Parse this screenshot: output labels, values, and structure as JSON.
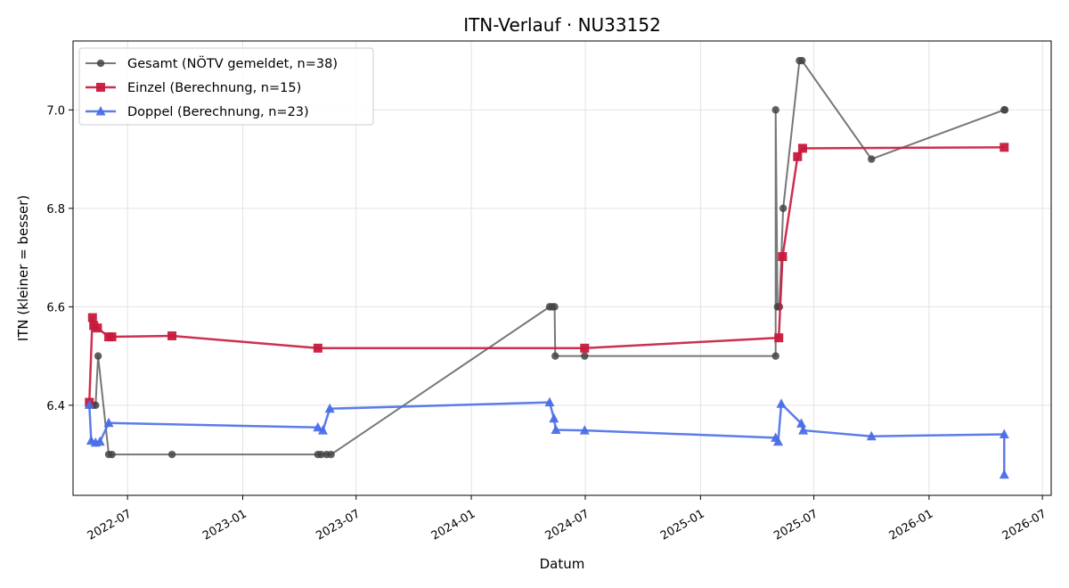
{
  "chart_data": {
    "type": "line",
    "title": "ITN-Verlauf · NU33152",
    "xlabel": "Datum",
    "ylabel": "ITN  (kleiner = besser)",
    "x_type": "date",
    "xlim": [
      "2022-04-05",
      "2026-07-15"
    ],
    "ylim": [
      6.217,
      7.14
    ],
    "xticks": [
      "2022-07",
      "2023-01",
      "2023-07",
      "2024-01",
      "2024-07",
      "2025-01",
      "2025-07",
      "2026-01",
      "2026-07"
    ],
    "yticks": [
      6.4,
      6.6,
      6.8,
      7.0
    ],
    "ytick_labels": [
      "6.4",
      "6.6",
      "6.8",
      "7.0"
    ],
    "grid": true,
    "legend_position": "top-left",
    "series": [
      {
        "name": "Gesamt (NÖTV gemeldet, n=38)",
        "color": "#555555",
        "marker": "circle",
        "points": [
          [
            "2022-05-01",
            6.4
          ],
          [
            "2022-05-07",
            6.4
          ],
          [
            "2022-05-11",
            6.4
          ],
          [
            "2022-05-15",
            6.5
          ],
          [
            "2022-06-01",
            6.3
          ],
          [
            "2022-06-06",
            6.3
          ],
          [
            "2022-09-10",
            6.3
          ],
          [
            "2023-05-01",
            6.3
          ],
          [
            "2023-05-06",
            6.3
          ],
          [
            "2023-05-15",
            6.3
          ],
          [
            "2023-05-22",
            6.3
          ],
          [
            "2024-05-05",
            6.6
          ],
          [
            "2024-05-09",
            6.6
          ],
          [
            "2024-05-13",
            6.6
          ],
          [
            "2024-05-14",
            6.5
          ],
          [
            "2024-06-30",
            6.5
          ],
          [
            "2025-05-01",
            6.5
          ],
          [
            "2025-05-01",
            7.0
          ],
          [
            "2025-05-04",
            6.6
          ],
          [
            "2025-05-07",
            6.6
          ],
          [
            "2025-05-13",
            6.8
          ],
          [
            "2025-06-08",
            7.1
          ],
          [
            "2025-06-12",
            7.1
          ],
          [
            "2025-10-01",
            6.9
          ],
          [
            "2026-05-01",
            7.0
          ],
          [
            "2026-05-02",
            7.0
          ]
        ]
      },
      {
        "name": "Einzel (Berechnung, n=15)",
        "color": "#c8193c",
        "marker": "square",
        "points": [
          [
            "2022-05-01",
            6.406
          ],
          [
            "2022-05-06",
            6.578
          ],
          [
            "2022-05-08",
            6.562
          ],
          [
            "2022-05-14",
            6.557
          ],
          [
            "2022-06-01",
            6.539
          ],
          [
            "2022-06-06",
            6.539
          ],
          [
            "2022-09-10",
            6.541
          ],
          [
            "2023-05-01",
            6.516
          ],
          [
            "2024-06-30",
            6.516
          ],
          [
            "2025-05-06",
            6.537
          ],
          [
            "2025-05-12",
            6.702
          ],
          [
            "2025-06-05",
            6.905
          ],
          [
            "2025-06-13",
            6.922
          ],
          [
            "2026-05-01",
            6.924
          ]
        ]
      },
      {
        "name": "Doppel (Berechnung, n=23)",
        "color": "#4a6ee8",
        "marker": "triangle",
        "points": [
          [
            "2022-05-01",
            6.401
          ],
          [
            "2022-05-04",
            6.328
          ],
          [
            "2022-05-11",
            6.324
          ],
          [
            "2022-05-18",
            6.326
          ],
          [
            "2022-06-01",
            6.364
          ],
          [
            "2023-05-01",
            6.355
          ],
          [
            "2023-05-09",
            6.349
          ],
          [
            "2023-05-20",
            6.393
          ],
          [
            "2024-05-05",
            6.406
          ],
          [
            "2024-05-12",
            6.373
          ],
          [
            "2024-05-15",
            6.35
          ],
          [
            "2024-06-30",
            6.349
          ],
          [
            "2025-05-01",
            6.334
          ],
          [
            "2025-05-05",
            6.326
          ],
          [
            "2025-05-10",
            6.403
          ],
          [
            "2025-06-11",
            6.363
          ],
          [
            "2025-06-14",
            6.349
          ],
          [
            "2025-10-01",
            6.337
          ],
          [
            "2026-05-01",
            6.341
          ],
          [
            "2026-05-01",
            6.259
          ]
        ]
      }
    ]
  }
}
